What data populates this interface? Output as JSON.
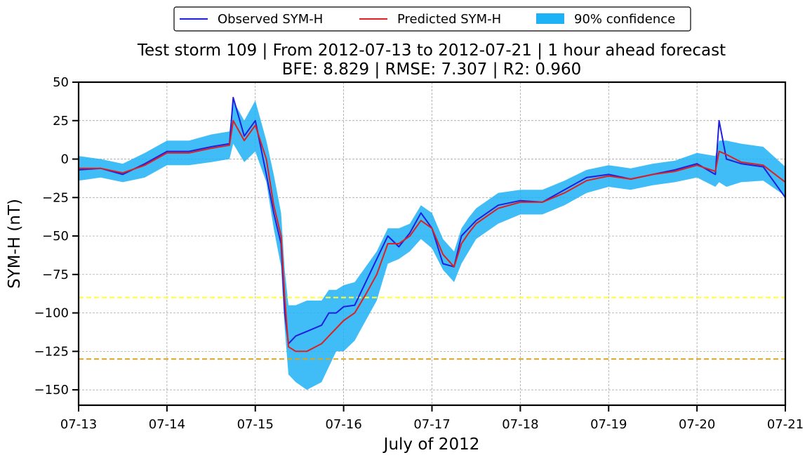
{
  "chart_data": {
    "type": "line",
    "title_line1": "Test storm 109 | From 2012-07-13 to 2012-07-21 | 1 hour ahead forecast",
    "title_line2": "BFE: 8.829 | RMSE: 7.307 | R2: 0.960",
    "xlabel": "July of 2012",
    "ylabel": "SYM-H (nT)",
    "x_range": [
      "2012-07-13",
      "2012-07-21"
    ],
    "ylim": [
      -160,
      50
    ],
    "grid": true,
    "legend_position": "top-center",
    "x_ticks": [
      {
        "value": "2012-07-13",
        "label": "07-13"
      },
      {
        "value": "2012-07-14",
        "label": "07-14"
      },
      {
        "value": "2012-07-15",
        "label": "07-15"
      },
      {
        "value": "2012-07-16",
        "label": "07-16"
      },
      {
        "value": "2012-07-17",
        "label": "07-17"
      },
      {
        "value": "2012-07-18",
        "label": "07-18"
      },
      {
        "value": "2012-07-19",
        "label": "07-19"
      },
      {
        "value": "2012-07-20",
        "label": "07-20"
      },
      {
        "value": "2012-07-21",
        "label": "07-21"
      }
    ],
    "y_ticks": [
      {
        "value": 50,
        "label": "50"
      },
      {
        "value": 25,
        "label": "25"
      },
      {
        "value": 0,
        "label": "0"
      },
      {
        "value": -25,
        "label": "−25"
      },
      {
        "value": -50,
        "label": "−50"
      },
      {
        "value": -75,
        "label": "−75"
      },
      {
        "value": -100,
        "label": "−100"
      },
      {
        "value": -125,
        "label": "−125"
      },
      {
        "value": -150,
        "label": "−150"
      }
    ],
    "reference_lines": [
      {
        "y": -90,
        "color": "#ffff33"
      },
      {
        "y": -130,
        "color": "#daa520"
      }
    ],
    "series": [
      {
        "name": "Observed SYM-H",
        "color": "#1f1fe0",
        "x": [
          "2012-07-13 00:00",
          "2012-07-13 06:00",
          "2012-07-13 12:00",
          "2012-07-13 18:00",
          "2012-07-14 00:00",
          "2012-07-14 06:00",
          "2012-07-14 12:00",
          "2012-07-14 17:00",
          "2012-07-14 18:00",
          "2012-07-14 21:00",
          "2012-07-15 00:00",
          "2012-07-15 03:00",
          "2012-07-15 05:00",
          "2012-07-15 07:00",
          "2012-07-15 08:00",
          "2012-07-15 09:00",
          "2012-07-15 11:00",
          "2012-07-15 14:00",
          "2012-07-15 18:00",
          "2012-07-15 20:00",
          "2012-07-15 22:00",
          "2012-07-16 00:00",
          "2012-07-16 03:00",
          "2012-07-16 06:00",
          "2012-07-16 09:00",
          "2012-07-16 12:00",
          "2012-07-16 15:00",
          "2012-07-16 18:00",
          "2012-07-16 21:00",
          "2012-07-17 00:00",
          "2012-07-17 03:00",
          "2012-07-17 06:00",
          "2012-07-17 08:00",
          "2012-07-17 10:00",
          "2012-07-17 12:00",
          "2012-07-17 18:00",
          "2012-07-18 00:00",
          "2012-07-18 06:00",
          "2012-07-18 12:00",
          "2012-07-18 18:00",
          "2012-07-19 00:00",
          "2012-07-19 06:00",
          "2012-07-19 12:00",
          "2012-07-19 18:00",
          "2012-07-20 00:00",
          "2012-07-20 05:00",
          "2012-07-20 06:00",
          "2012-07-20 08:00",
          "2012-07-20 12:00",
          "2012-07-20 18:00",
          "2012-07-21 00:00"
        ],
        "y": [
          -7,
          -6,
          -10,
          -3,
          5,
          5,
          8,
          10,
          40,
          15,
          25,
          -10,
          -35,
          -55,
          -100,
          -120,
          -115,
          -112,
          -108,
          -100,
          -100,
          -96,
          -95,
          -80,
          -65,
          -50,
          -57,
          -48,
          -35,
          -45,
          -68,
          -70,
          -50,
          -45,
          -40,
          -30,
          -27,
          -28,
          -20,
          -12,
          -10,
          -13,
          -10,
          -7,
          -3,
          -10,
          25,
          0,
          -3,
          -5,
          -25
        ]
      },
      {
        "name": "Predicted SYM-H",
        "color": "#dd2020",
        "x": [
          "2012-07-13 00:00",
          "2012-07-13 06:00",
          "2012-07-13 12:00",
          "2012-07-13 18:00",
          "2012-07-14 00:00",
          "2012-07-14 06:00",
          "2012-07-14 12:00",
          "2012-07-14 17:00",
          "2012-07-14 18:00",
          "2012-07-14 21:00",
          "2012-07-15 00:00",
          "2012-07-15 03:00",
          "2012-07-15 05:00",
          "2012-07-15 07:00",
          "2012-07-15 08:00",
          "2012-07-15 09:00",
          "2012-07-15 11:00",
          "2012-07-15 14:00",
          "2012-07-15 18:00",
          "2012-07-15 20:00",
          "2012-07-15 22:00",
          "2012-07-16 00:00",
          "2012-07-16 03:00",
          "2012-07-16 06:00",
          "2012-07-16 09:00",
          "2012-07-16 12:00",
          "2012-07-16 15:00",
          "2012-07-16 18:00",
          "2012-07-16 21:00",
          "2012-07-17 00:00",
          "2012-07-17 03:00",
          "2012-07-17 06:00",
          "2012-07-17 08:00",
          "2012-07-17 10:00",
          "2012-07-17 12:00",
          "2012-07-17 18:00",
          "2012-07-18 00:00",
          "2012-07-18 06:00",
          "2012-07-18 12:00",
          "2012-07-18 18:00",
          "2012-07-19 00:00",
          "2012-07-19 06:00",
          "2012-07-19 12:00",
          "2012-07-19 18:00",
          "2012-07-20 00:00",
          "2012-07-20 05:00",
          "2012-07-20 06:00",
          "2012-07-20 08:00",
          "2012-07-20 12:00",
          "2012-07-20 18:00",
          "2012-07-21 00:00"
        ],
        "y": [
          -6,
          -6,
          -9,
          -4,
          4,
          4,
          7,
          9,
          25,
          12,
          22,
          0,
          -30,
          -50,
          -90,
          -122,
          -125,
          -125,
          -120,
          -115,
          -110,
          -105,
          -100,
          -88,
          -75,
          -55,
          -55,
          -50,
          -40,
          -45,
          -62,
          -70,
          -55,
          -48,
          -42,
          -32,
          -28,
          -28,
          -22,
          -14,
          -11,
          -13,
          -10,
          -8,
          -4,
          -8,
          5,
          3,
          -2,
          -4,
          -15
        ]
      }
    ],
    "band": {
      "name": "90% confidence",
      "color": "#1fb1f5",
      "x": [
        "2012-07-13 00:00",
        "2012-07-13 06:00",
        "2012-07-13 12:00",
        "2012-07-13 18:00",
        "2012-07-14 00:00",
        "2012-07-14 06:00",
        "2012-07-14 12:00",
        "2012-07-14 17:00",
        "2012-07-14 18:00",
        "2012-07-14 21:00",
        "2012-07-15 00:00",
        "2012-07-15 03:00",
        "2012-07-15 05:00",
        "2012-07-15 07:00",
        "2012-07-15 08:00",
        "2012-07-15 09:00",
        "2012-07-15 11:00",
        "2012-07-15 14:00",
        "2012-07-15 18:00",
        "2012-07-15 20:00",
        "2012-07-15 22:00",
        "2012-07-16 00:00",
        "2012-07-16 03:00",
        "2012-07-16 06:00",
        "2012-07-16 09:00",
        "2012-07-16 12:00",
        "2012-07-16 15:00",
        "2012-07-16 18:00",
        "2012-07-16 21:00",
        "2012-07-17 00:00",
        "2012-07-17 03:00",
        "2012-07-17 06:00",
        "2012-07-17 08:00",
        "2012-07-17 10:00",
        "2012-07-17 12:00",
        "2012-07-17 18:00",
        "2012-07-18 00:00",
        "2012-07-18 06:00",
        "2012-07-18 12:00",
        "2012-07-18 18:00",
        "2012-07-19 00:00",
        "2012-07-19 06:00",
        "2012-07-19 12:00",
        "2012-07-19 18:00",
        "2012-07-20 00:00",
        "2012-07-20 05:00",
        "2012-07-20 06:00",
        "2012-07-20 08:00",
        "2012-07-20 12:00",
        "2012-07-20 18:00",
        "2012-07-21 00:00"
      ],
      "upper": [
        2,
        0,
        -3,
        4,
        12,
        12,
        16,
        18,
        38,
        25,
        38,
        12,
        -10,
        -35,
        -72,
        -95,
        -95,
        -92,
        -92,
        -85,
        -85,
        -82,
        -80,
        -70,
        -60,
        -45,
        -45,
        -42,
        -30,
        -35,
        -52,
        -60,
        -45,
        -38,
        -32,
        -22,
        -20,
        -20,
        -14,
        -7,
        -4,
        -6,
        -3,
        -1,
        4,
        2,
        12,
        12,
        10,
        8,
        -5
      ],
      "lower": [
        -14,
        -12,
        -15,
        -12,
        -4,
        -4,
        -2,
        0,
        10,
        -2,
        5,
        -15,
        -45,
        -70,
        -110,
        -140,
        -145,
        -150,
        -145,
        -135,
        -125,
        -125,
        -118,
        -105,
        -92,
        -68,
        -65,
        -60,
        -52,
        -58,
        -72,
        -80,
        -68,
        -60,
        -52,
        -42,
        -36,
        -36,
        -30,
        -22,
        -18,
        -20,
        -17,
        -15,
        -12,
        -18,
        -15,
        -18,
        -15,
        -14,
        -24
      ]
    }
  }
}
